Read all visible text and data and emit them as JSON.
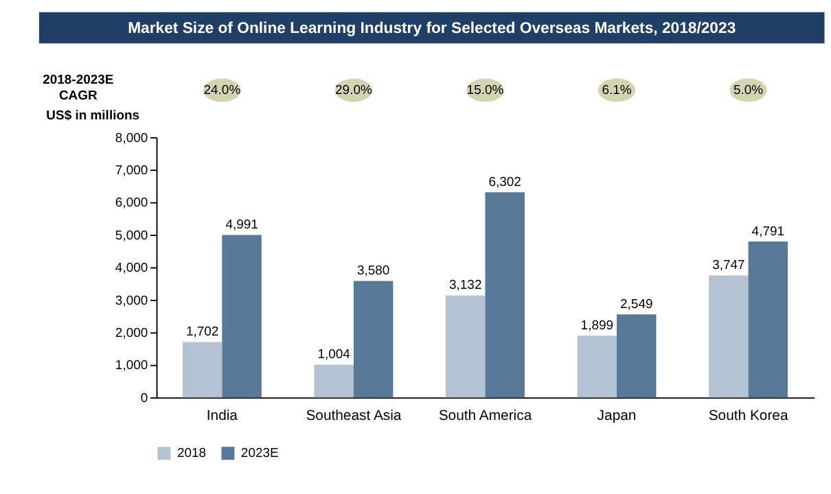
{
  "chart_data": {
    "type": "bar",
    "title": "Market Size of Online Learning Industry for Selected Overseas Markets, 2018/2023",
    "ylabel": "US$ in millions",
    "categories": [
      "India",
      "Southeast Asia",
      "South America",
      "Japan",
      "South Korea"
    ],
    "series": [
      {
        "name": "2018",
        "color": "#b4c3d4",
        "values": [
          1702,
          1004,
          3132,
          1899,
          3747
        ],
        "value_labels": [
          "1,702",
          "1,004",
          "3,132",
          "1,899",
          "3,747"
        ]
      },
      {
        "name": "2023E",
        "color": "#587898",
        "values": [
          4991,
          3580,
          6302,
          2549,
          4791
        ],
        "value_labels": [
          "4,991",
          "3,580",
          "6,302",
          "2,549",
          "4,791"
        ]
      }
    ],
    "ylim": [
      0,
      8000
    ],
    "yticks": [
      0,
      {
        "value": 1000,
        "label": "1,000"
      },
      {
        "value": 2000,
        "label": "2,000"
      },
      {
        "value": 3000,
        "label": "3,000"
      },
      {
        "value": 4000,
        "label": "4,000"
      },
      {
        "value": 5000,
        "label": "5,000"
      },
      {
        "value": 6000,
        "label": "6,000"
      },
      {
        "value": 7000,
        "label": "7,000"
      },
      {
        "value": 8000,
        "label": "8,000"
      }
    ],
    "grid": false,
    "legend": "bottom",
    "annotations": [
      "2018-2023E CAGR",
      "24.0%",
      "29.0%",
      "15.0%",
      "6.1%",
      "5.0%"
    ]
  }
}
